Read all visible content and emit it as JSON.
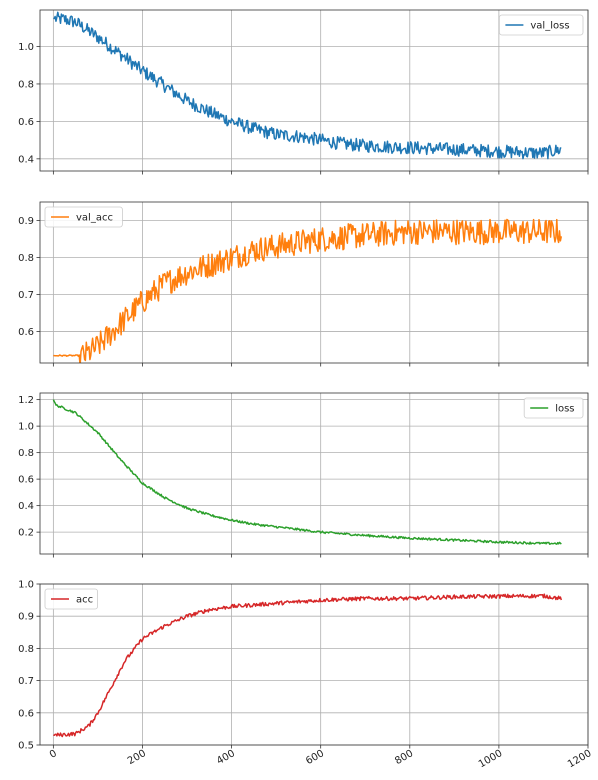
{
  "chart_data": [
    {
      "type": "line",
      "legend_position": "top-right",
      "grid": true,
      "xlim": [
        -30,
        1200
      ],
      "ylim": [
        0.335,
        1.195
      ],
      "yticks": [
        0.4,
        0.6,
        0.8,
        1.0
      ],
      "yticklabels": [
        "0.4",
        "0.6",
        "0.8",
        "1.0"
      ],
      "series": [
        {
          "name": "val_loss",
          "color": "#1f77b4",
          "x_end": 1140,
          "noise": 0.035,
          "points": [
            [
              0,
              1.15
            ],
            [
              25,
              1.145
            ],
            [
              50,
              1.13
            ],
            [
              100,
              1.05
            ],
            [
              150,
              0.96
            ],
            [
              200,
              0.87
            ],
            [
              250,
              0.79
            ],
            [
              300,
              0.71
            ],
            [
              350,
              0.65
            ],
            [
              400,
              0.6
            ],
            [
              450,
              0.56
            ],
            [
              500,
              0.53
            ],
            [
              550,
              0.52
            ],
            [
              600,
              0.5
            ],
            [
              650,
              0.48
            ],
            [
              700,
              0.47
            ],
            [
              800,
              0.46
            ],
            [
              900,
              0.45
            ],
            [
              1000,
              0.44
            ],
            [
              1100,
              0.43
            ],
            [
              1140,
              0.45
            ]
          ]
        }
      ]
    },
    {
      "type": "line",
      "legend_position": "top-left",
      "grid": true,
      "xlim": [
        -30,
        1200
      ],
      "ylim": [
        0.515,
        0.95
      ],
      "yticks": [
        0.6,
        0.7,
        0.8,
        0.9
      ],
      "yticklabels": [
        "0.6",
        "0.7",
        "0.8",
        "0.9"
      ],
      "series": [
        {
          "name": "val_acc",
          "color": "#ff7f0e",
          "x_end": 1140,
          "noise": 0.035,
          "points": [
            [
              0,
              0.535
            ],
            [
              70,
              0.535
            ],
            [
              100,
              0.56
            ],
            [
              150,
              0.62
            ],
            [
              200,
              0.68
            ],
            [
              250,
              0.73
            ],
            [
              300,
              0.76
            ],
            [
              350,
              0.78
            ],
            [
              400,
              0.8
            ],
            [
              450,
              0.82
            ],
            [
              500,
              0.83
            ],
            [
              600,
              0.85
            ],
            [
              700,
              0.86
            ],
            [
              800,
              0.87
            ],
            [
              900,
              0.87
            ],
            [
              1000,
              0.87
            ],
            [
              1100,
              0.87
            ],
            [
              1140,
              0.87
            ]
          ]
        }
      ]
    },
    {
      "type": "line",
      "legend_position": "top-right",
      "grid": true,
      "xlim": [
        -30,
        1200
      ],
      "ylim": [
        0.035,
        1.25
      ],
      "yticks": [
        0.2,
        0.4,
        0.6,
        0.8,
        1.0,
        1.2
      ],
      "yticklabels": [
        "0.2",
        "0.4",
        "0.6",
        "0.8",
        "1.0",
        "1.2"
      ],
      "series": [
        {
          "name": "loss",
          "color": "#2ca02c",
          "x_end": 1140,
          "noise": 0.008,
          "points": [
            [
              0,
              1.2
            ],
            [
              5,
              1.16
            ],
            [
              50,
              1.1
            ],
            [
              100,
              0.95
            ],
            [
              150,
              0.75
            ],
            [
              200,
              0.57
            ],
            [
              250,
              0.46
            ],
            [
              300,
              0.38
            ],
            [
              350,
              0.33
            ],
            [
              400,
              0.29
            ],
            [
              450,
              0.26
            ],
            [
              500,
              0.24
            ],
            [
              600,
              0.2
            ],
            [
              700,
              0.175
            ],
            [
              800,
              0.155
            ],
            [
              900,
              0.14
            ],
            [
              1000,
              0.125
            ],
            [
              1100,
              0.115
            ],
            [
              1140,
              0.115
            ]
          ]
        }
      ]
    },
    {
      "type": "line",
      "legend_position": "top-left",
      "grid": true,
      "xlim": [
        -30,
        1200
      ],
      "ylim": [
        0.5,
        1.0
      ],
      "yticks": [
        0.5,
        0.6,
        0.7,
        0.8,
        0.9,
        1.0
      ],
      "yticklabels": [
        "0.5",
        "0.6",
        "0.7",
        "0.8",
        "0.9",
        "1.0"
      ],
      "xticks": [
        0,
        200,
        400,
        600,
        800,
        1000,
        1200
      ],
      "xticklabels": [
        "0",
        "200",
        "400",
        "600",
        "800",
        "1000",
        "1200"
      ],
      "series": [
        {
          "name": "acc",
          "color": "#d62728",
          "x_end": 1140,
          "noise": 0.006,
          "points": [
            [
              0,
              0.53
            ],
            [
              50,
              0.535
            ],
            [
              80,
              0.56
            ],
            [
              100,
              0.6
            ],
            [
              130,
              0.68
            ],
            [
              160,
              0.76
            ],
            [
              200,
              0.83
            ],
            [
              250,
              0.87
            ],
            [
              300,
              0.9
            ],
            [
              350,
              0.92
            ],
            [
              400,
              0.93
            ],
            [
              500,
              0.94
            ],
            [
              600,
              0.95
            ],
            [
              700,
              0.955
            ],
            [
              800,
              0.955
            ],
            [
              900,
              0.96
            ],
            [
              1000,
              0.962
            ],
            [
              1100,
              0.963
            ],
            [
              1140,
              0.955
            ]
          ]
        }
      ]
    }
  ]
}
